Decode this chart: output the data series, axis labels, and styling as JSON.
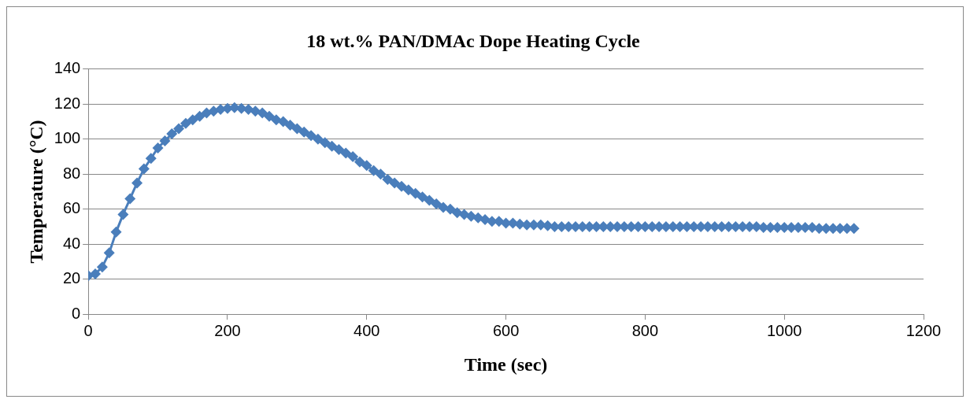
{
  "chart_data": {
    "type": "line",
    "title": "18 wt.% PAN/DMAc Dope Heating Cycle",
    "xlabel": "Time (sec)",
    "ylabel": "Temperature (°C)",
    "x": [
      0,
      10,
      20,
      30,
      40,
      50,
      60,
      70,
      80,
      90,
      100,
      110,
      120,
      130,
      140,
      150,
      160,
      170,
      180,
      190,
      200,
      210,
      220,
      230,
      240,
      250,
      260,
      270,
      280,
      290,
      300,
      310,
      320,
      330,
      340,
      350,
      360,
      370,
      380,
      390,
      400,
      410,
      420,
      430,
      440,
      450,
      460,
      470,
      480,
      490,
      500,
      510,
      520,
      530,
      540,
      550,
      560,
      570,
      580,
      590,
      600,
      610,
      620,
      630,
      640,
      650,
      660,
      670,
      680,
      690,
      700,
      710,
      720,
      730,
      740,
      750,
      760,
      770,
      780,
      790,
      800,
      810,
      820,
      830,
      840,
      850,
      860,
      870,
      880,
      890,
      900,
      910,
      920,
      930,
      940,
      950,
      960,
      970,
      980,
      990,
      1000,
      1010,
      1020,
      1030,
      1040,
      1050,
      1060,
      1070,
      1080,
      1090,
      1100
    ],
    "series": [
      {
        "color": "#4a7ebb",
        "values": [
          22,
          23,
          27,
          35,
          47,
          57,
          66,
          75,
          83,
          89,
          95,
          99,
          103,
          106,
          109,
          111,
          113,
          115,
          116,
          117,
          117.5,
          118,
          117.5,
          117,
          116,
          115,
          113,
          111,
          110,
          108,
          106,
          104,
          102,
          100,
          98,
          96,
          94,
          92,
          90,
          87,
          85,
          82,
          80,
          77,
          75,
          73,
          71,
          69,
          67,
          65,
          63,
          61,
          60,
          58,
          57,
          56,
          55,
          54,
          53,
          53,
          52,
          52,
          51.5,
          51,
          51,
          51,
          50.5,
          50,
          50,
          50,
          50,
          50,
          50,
          50,
          50,
          50,
          50,
          50,
          50,
          50,
          50,
          50,
          50,
          50,
          50,
          50,
          50,
          50,
          50,
          50,
          50,
          50,
          50,
          50,
          50,
          50,
          50,
          49.5,
          49.5,
          49.5,
          49.5,
          49.5,
          49.5,
          49.5,
          49.5,
          49,
          49,
          49,
          49,
          49,
          49
        ]
      }
    ],
    "xlim": [
      0,
      1200
    ],
    "xticks": [
      0,
      200,
      400,
      600,
      800,
      1000,
      1200
    ],
    "ylim": [
      0,
      140
    ],
    "yticks": [
      0,
      20,
      40,
      60,
      80,
      100,
      120,
      140
    ],
    "grid": "y",
    "legend": false,
    "marker": "diamond",
    "line_style": "solid"
  }
}
